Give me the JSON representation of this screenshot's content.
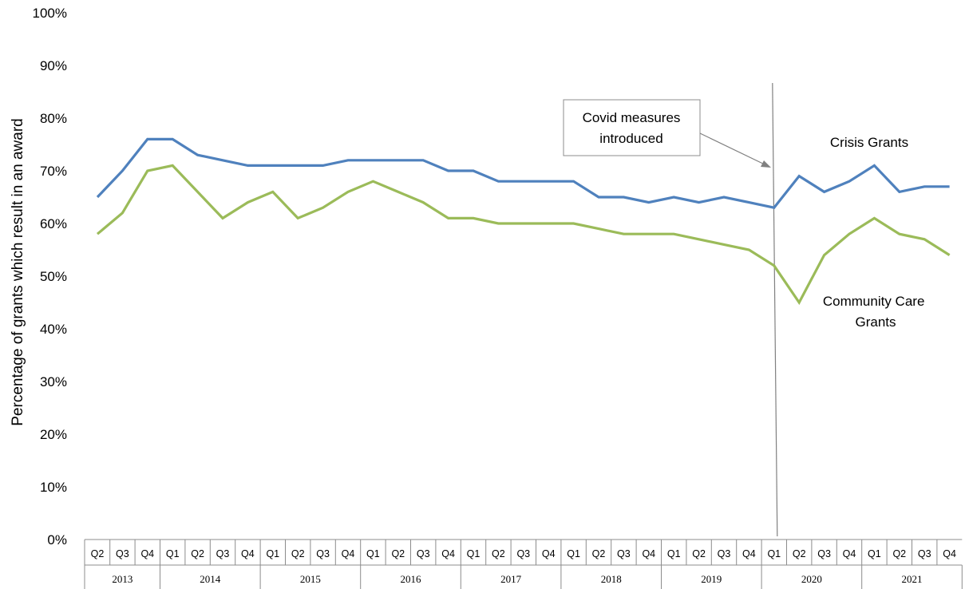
{
  "chart_data": {
    "type": "line",
    "title": "",
    "xlabel": "",
    "ylabel": "Percentage of grants which result in an award",
    "ylim": [
      0,
      100
    ],
    "yticks": [
      "0%",
      "10%",
      "20%",
      "30%",
      "40%",
      "50%",
      "60%",
      "70%",
      "80%",
      "90%",
      "100%"
    ],
    "x": [
      "2013 Q2",
      "2013 Q3",
      "2013 Q4",
      "2014 Q1",
      "2014 Q2",
      "2014 Q3",
      "2014 Q4",
      "2015 Q1",
      "2015 Q2",
      "2015 Q3",
      "2015 Q4",
      "2016 Q1",
      "2016 Q2",
      "2016 Q3",
      "2016 Q4",
      "2017 Q1",
      "2017 Q2",
      "2017 Q3",
      "2017 Q4",
      "2018 Q1",
      "2018 Q2",
      "2018 Q3",
      "2018 Q4",
      "2019 Q1",
      "2019 Q2",
      "2019 Q3",
      "2019 Q4",
      "2020 Q1",
      "2020 Q2",
      "2020 Q3",
      "2020 Q4",
      "2021 Q1",
      "2021 Q2",
      "2021 Q3",
      "2021 Q4"
    ],
    "quarter_labels": [
      "Q2",
      "Q3",
      "Q4",
      "Q1",
      "Q2",
      "Q3",
      "Q4",
      "Q1",
      "Q2",
      "Q3",
      "Q4",
      "Q1",
      "Q2",
      "Q3",
      "Q4",
      "Q1",
      "Q2",
      "Q3",
      "Q4",
      "Q1",
      "Q2",
      "Q3",
      "Q4",
      "Q1",
      "Q2",
      "Q3",
      "Q4",
      "Q1",
      "Q2",
      "Q3",
      "Q4",
      "Q1",
      "Q2",
      "Q3",
      "Q4"
    ],
    "year_groups": [
      {
        "year": "2013",
        "quarters": 3
      },
      {
        "year": "2014",
        "quarters": 4
      },
      {
        "year": "2015",
        "quarters": 4
      },
      {
        "year": "2016",
        "quarters": 4
      },
      {
        "year": "2017",
        "quarters": 4
      },
      {
        "year": "2018",
        "quarters": 4
      },
      {
        "year": "2019",
        "quarters": 4
      },
      {
        "year": "2020",
        "quarters": 4
      },
      {
        "year": "2021",
        "quarters": 4
      }
    ],
    "series": [
      {
        "name": "Crisis Grants",
        "color": "#4f81bd",
        "values": [
          65,
          70,
          76,
          76,
          73,
          72,
          71,
          71,
          71,
          71,
          72,
          72,
          72,
          72,
          70,
          70,
          68,
          68,
          68,
          68,
          65,
          65,
          64,
          65,
          64,
          65,
          64,
          63,
          69,
          66,
          68,
          71,
          66,
          67,
          67
        ]
      },
      {
        "name": "Community Care Grants",
        "color": "#9bbb59",
        "values": [
          58,
          62,
          70,
          71,
          66,
          61,
          64,
          66,
          61,
          63,
          66,
          68,
          66,
          64,
          61,
          61,
          60,
          60,
          60,
          60,
          59,
          58,
          58,
          58,
          57,
          56,
          55,
          52,
          45,
          54,
          58,
          61,
          58,
          57,
          54
        ]
      }
    ],
    "annotations": [
      {
        "text_lines": [
          "Covid measures",
          "introduced"
        ],
        "marks_x": "2020 Q1"
      }
    ],
    "grid": false,
    "legend": "none"
  }
}
